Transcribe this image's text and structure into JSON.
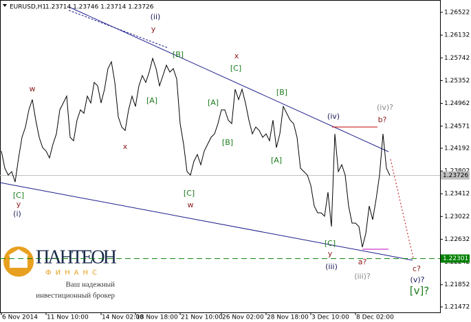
{
  "chart_data": {
    "type": "line",
    "title": "EURUSD,H1",
    "ohlc": "1.23714 1.23746 1.23714 1.23726",
    "categories": [
      "6 Nov 2014",
      null,
      null,
      null,
      null,
      null,
      null,
      null,
      null,
      null,
      null,
      null,
      null,
      "11 Nov 10:00",
      null,
      null,
      null,
      null,
      null,
      null,
      null,
      null,
      null,
      null,
      null,
      null,
      null,
      null,
      null,
      "14 Nov 02:00",
      null,
      null,
      null,
      null,
      null,
      null,
      null,
      null,
      null,
      "18 Nov 18:00",
      null,
      null,
      null,
      null,
      null,
      null,
      null,
      null,
      null,
      null,
      null,
      null,
      "21 Nov 10:00",
      null,
      null,
      null,
      null,
      null,
      null,
      null,
      null,
      null,
      null,
      null,
      "26 Nov 02:00",
      null,
      null,
      null,
      null,
      null,
      null,
      null,
      null,
      null,
      null,
      null,
      null,
      "28 Nov 18:00",
      null,
      null,
      null,
      null,
      null,
      null,
      null,
      null,
      null,
      null,
      null,
      null,
      "3 Dec 10:00",
      null,
      null,
      null,
      null,
      null,
      null,
      null,
      null,
      null,
      null,
      null,
      null,
      "8 Dec 02:00",
      null,
      null,
      null,
      null,
      null,
      null,
      null,
      null,
      null,
      null
    ],
    "series": [
      {
        "name": "EURUSD",
        "color": "#000000",
        "values": [
          1.24144,
          1.2385,
          1.23732,
          1.23791,
          1.23614,
          1.24026,
          1.2438,
          1.24556,
          1.24851,
          1.25027,
          1.24674,
          1.2438,
          1.24203,
          1.24144,
          1.24026,
          1.24262,
          1.24439,
          1.24851,
          1.24968,
          1.25086,
          1.2438,
          1.24321,
          1.24674,
          1.24851,
          1.24792,
          1.25086,
          1.24968,
          1.25321,
          1.25263,
          1.24968,
          1.25204,
          1.25557,
          1.25675,
          1.25321,
          1.24733,
          1.24556,
          1.24497,
          1.24851,
          1.25086,
          1.24909,
          1.25263,
          1.25439,
          1.25321,
          1.25498,
          1.25733,
          1.25557,
          1.25263,
          1.25439,
          1.25616,
          1.25498,
          1.25557,
          1.2538,
          1.24615,
          1.24262,
          1.23791,
          1.23732,
          1.23968,
          1.24085,
          1.23909,
          1.24144,
          1.24262,
          1.2438,
          1.24439,
          1.24615,
          1.24851,
          1.24851,
          1.24674,
          1.24615,
          1.25204,
          1.25027,
          1.25204,
          1.24968,
          1.24674,
          1.24439,
          1.24556,
          1.24497,
          1.2438,
          1.24439,
          1.24321,
          1.24674,
          1.24203,
          1.24439,
          1.24909,
          1.24792,
          1.24674,
          1.24615,
          1.2438,
          1.2385,
          1.23791,
          1.23732,
          1.23556,
          1.23202,
          1.23085,
          1.23085,
          1.23026,
          1.23438,
          1.22849,
          1.24439,
          1.23791,
          1.23909,
          1.23732,
          1.23202,
          1.22908,
          1.22908,
          1.22849,
          1.22496,
          1.22732,
          1.23202,
          1.22967,
          1.2332,
          1.23732,
          1.24439,
          1.2385,
          1.23726
        ]
      }
    ],
    "ylim": [
      1.21378,
      1.26734
    ],
    "yticks": [
      1.26522,
      1.26132,
      1.25742,
      1.25352,
      1.24962,
      1.24571,
      1.24192,
      1.23802,
      1.23412,
      1.23022,
      1.22632,
      1.22242,
      1.21852,
      1.21472
    ],
    "hlines": [
      {
        "value": 1.23726,
        "color": "#c0c0c0",
        "dashed": false
      },
      {
        "value": 1.22301,
        "color": "#008000",
        "dashed": true
      }
    ],
    "annotations": [
      "(ii)",
      "y",
      "[B]",
      "x",
      "[C]",
      "[B]",
      "w",
      "[A]",
      "[A]",
      "(iv)",
      "(iv)?",
      "b?",
      "x",
      "[B]",
      "[A]",
      "[C]",
      "w",
      "[C]",
      "y",
      "(i)",
      "[C]",
      "y",
      "(iii)",
      "a?",
      "(iii)?",
      "c?",
      "(v)?",
      "[v]?"
    ]
  },
  "logo": {
    "name": "ПАНТЕОН",
    "sub": "ФИНАНС",
    "line1": "Ваш надежный",
    "line2": "инвестиционный брокер"
  }
}
